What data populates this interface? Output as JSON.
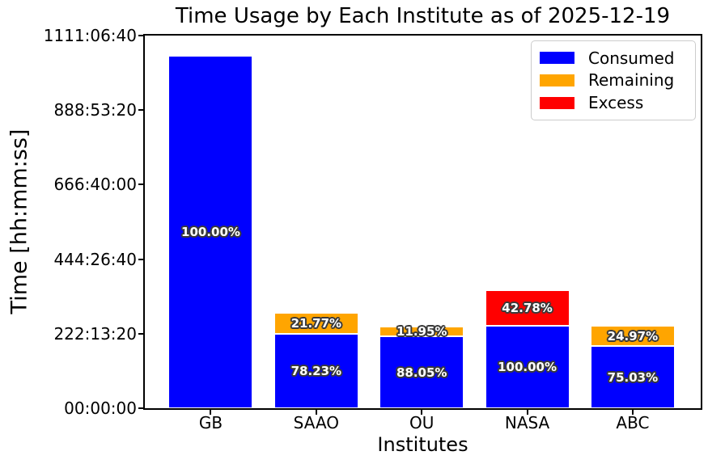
{
  "chart_data": {
    "type": "bar",
    "stacked": true,
    "title": "Time Usage by Each Institute as of 2025-12-19",
    "xlabel": "Institutes",
    "ylabel": "Time [hh:mm:ss]",
    "categories": [
      "GB",
      "SAAO",
      "OU",
      "NASA",
      "ABC"
    ],
    "series": [
      {
        "name": "Consumed",
        "color": "#0000ff",
        "values_seconds": [
          3780000,
          799800,
          770300,
          885600,
          664500
        ]
      },
      {
        "name": "Remaining",
        "color": "#ffa500",
        "values_seconds": [
          0,
          222600,
          104500,
          0,
          221100
        ]
      },
      {
        "name": "Excess",
        "color": "#ff0000",
        "values_seconds": [
          0,
          0,
          0,
          378900,
          0
        ]
      }
    ],
    "bar_percent_labels": {
      "Consumed": [
        "100.00%",
        "78.23%",
        "88.05%",
        "100.00%",
        "75.03%"
      ],
      "Remaining": [
        "",
        "21.77%",
        "11.95%",
        "",
        "24.97%"
      ],
      "Excess": [
        "",
        "",
        "",
        "42.78%",
        ""
      ]
    },
    "yticks": {
      "seconds": [
        0,
        800000,
        1600000,
        2400000,
        3200000,
        4000000
      ],
      "labels": [
        "00:00:00",
        "222:13:20",
        "444:26:40",
        "666:40:00",
        "888:53:20",
        "1111:06:40"
      ]
    },
    "ylim_seconds": [
      0,
      4000000
    ],
    "grid": false,
    "legend": {
      "position": "upper right",
      "entries": [
        "Consumed",
        "Remaining",
        "Excess"
      ]
    },
    "label_style": {
      "text_color": "#ffffff",
      "outline_color": "#3a3a3a"
    }
  }
}
